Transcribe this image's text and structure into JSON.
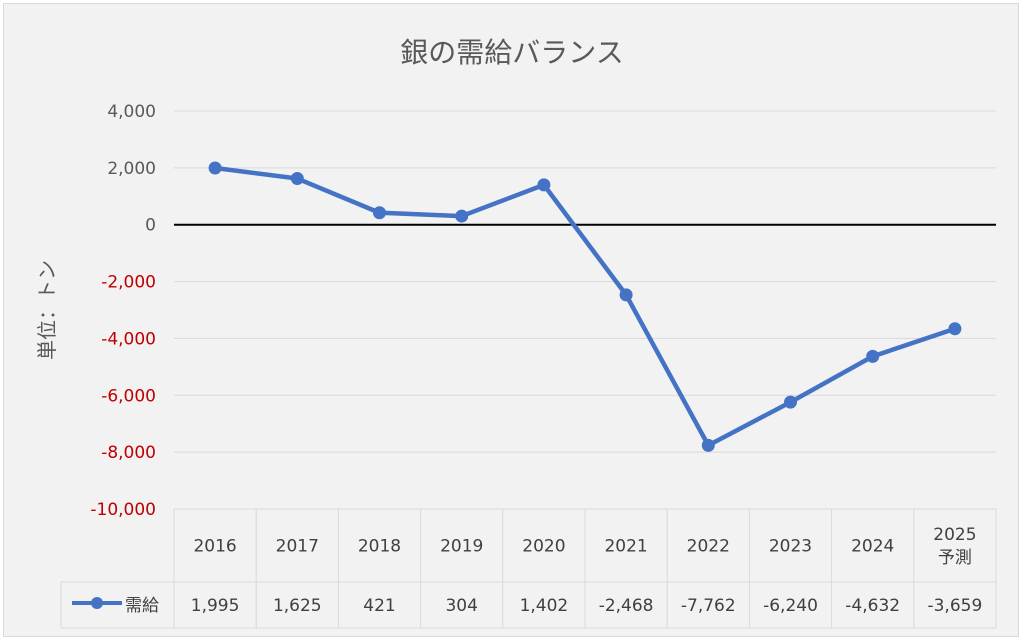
{
  "chart_data": {
    "type": "line",
    "title": "銀の需給バランス",
    "ylabel": "単位：トン",
    "xlabel": "",
    "ylim": [
      -10000,
      4000
    ],
    "yticks": [
      4000,
      2000,
      0,
      -2000,
      -4000,
      -6000,
      -8000,
      -10000
    ],
    "ytick_labels": [
      "4,000",
      "2,000",
      "0",
      "-2,000",
      "-4,000",
      "-6,000",
      "-8,000",
      "-10,000"
    ],
    "categories": [
      [
        "2016"
      ],
      [
        "2017"
      ],
      [
        "2018"
      ],
      [
        "2019"
      ],
      [
        "2020"
      ],
      [
        "2021"
      ],
      [
        "2022"
      ],
      [
        "2023"
      ],
      [
        "2024"
      ],
      [
        "2025",
        "予測"
      ]
    ],
    "series": [
      {
        "name": "需給",
        "values": [
          1995,
          1625,
          421,
          304,
          1402,
          -2468,
          -7762,
          -6240,
          -4632,
          -3659
        ],
        "value_labels": [
          "1,995",
          "1,625",
          "421",
          "304",
          "1,402",
          "-2,468",
          "-7,762",
          "-6,240",
          "-4,632",
          "-3,659"
        ]
      }
    ],
    "grid": true,
    "legend": "data-table",
    "colors": {
      "series": "#4472c4",
      "negative_tick": "#c00000",
      "positive_tick": "#595959",
      "gridline": "#d9d9d9",
      "zero_line": "#000000"
    }
  }
}
